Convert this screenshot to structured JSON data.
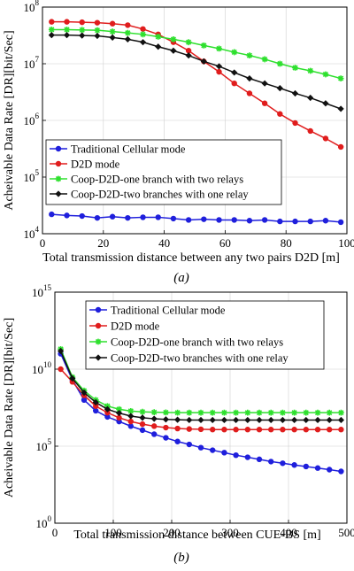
{
  "chart_data": [
    {
      "type": "line",
      "caption": "(a)",
      "xlabel": "Total transmission distance between any two pairs D2D [m]",
      "ylabel": "Acheivable Data Rate [DR][bit/Sec]",
      "xlim": [
        0,
        100
      ],
      "ylog10": true,
      "ylim_exp": [
        4,
        8
      ],
      "xticks": [
        "0",
        "20",
        "40",
        "60",
        "80",
        "100"
      ],
      "yticks": [
        {
          "base": "10",
          "exp": "4"
        },
        {
          "base": "10",
          "exp": "5"
        },
        {
          "base": "10",
          "exp": "6"
        },
        {
          "base": "10",
          "exp": "7"
        },
        {
          "base": "10",
          "exp": "8"
        }
      ],
      "grid": true,
      "legend_position": "bottom-left",
      "x": [
        3,
        8,
        13,
        18,
        23,
        28,
        33,
        38,
        43,
        48,
        53,
        58,
        63,
        68,
        73,
        78,
        83,
        88,
        93,
        98
      ],
      "series": [
        {
          "name": "Traditional Cellular mode",
          "color": "#1f1fdc",
          "marker": "circle",
          "values": [
            22000,
            21000,
            20500,
            19000,
            20000,
            19000,
            19500,
            19500,
            18500,
            17500,
            18000,
            17500,
            17500,
            17000,
            17500,
            16500,
            16500,
            16500,
            17000,
            16000
          ]
        },
        {
          "name": "D2D mode",
          "color": "#e01d1d",
          "marker": "circle",
          "values": [
            55000000,
            55000000,
            54000000,
            53000000,
            51000000,
            48000000,
            41000000,
            33000000,
            24000000,
            17000000,
            11000000,
            7200000,
            4500000,
            3000000,
            2000000,
            1300000,
            900000,
            650000,
            480000,
            340000
          ]
        },
        {
          "name": "Coop-D2D-one branch with two relays",
          "color": "#2ee02e",
          "marker": "star",
          "values": [
            40000000,
            40000000,
            39500000,
            39000000,
            37000000,
            35000000,
            33000000,
            30000000,
            27000000,
            24000000,
            21000000,
            18500000,
            16000000,
            14000000,
            12000000,
            10000000,
            8500000,
            7500000,
            6500000,
            5500000
          ]
        },
        {
          "name": "Coop-D2D-two branches with one relay",
          "color": "#111111",
          "marker": "diamond",
          "values": [
            32000000,
            32000000,
            31500000,
            31000000,
            29000000,
            27000000,
            24000000,
            20000000,
            17000000,
            14000000,
            11000000,
            9000000,
            7000000,
            5500000,
            4500000,
            3700000,
            3000000,
            2500000,
            2000000,
            1600000
          ]
        }
      ]
    },
    {
      "type": "line",
      "caption": "(b)",
      "xlabel": "Total transmission distance between CUE-BS [m]",
      "ylabel": "Acheivable Data Rate [DR][bit/Sec]",
      "xlim": [
        0,
        500
      ],
      "ylog10": true,
      "ylim_exp": [
        0,
        15
      ],
      "xticks": [
        "0",
        "100",
        "200",
        "300",
        "400",
        "500"
      ],
      "yticks": [
        {
          "base": "10",
          "exp": "0"
        },
        {
          "base": "10",
          "exp": "5"
        },
        {
          "base": "10",
          "exp": "10"
        },
        {
          "base": "10",
          "exp": "15"
        }
      ],
      "grid": true,
      "legend_position": "top-right",
      "x": [
        10,
        30,
        50,
        70,
        90,
        110,
        130,
        150,
        170,
        190,
        210,
        230,
        250,
        270,
        290,
        310,
        330,
        350,
        370,
        390,
        410,
        430,
        450,
        470,
        490
      ],
      "series": [
        {
          "name": "Traditional Cellular mode",
          "color": "#1f1fdc",
          "marker": "circle",
          "values": [
            100000000000.0,
            2000000000.0,
            100000000.0,
            20000000.0,
            8000000.0,
            4000000.0,
            2000000.0,
            1100000.0,
            600000.0,
            350000.0,
            200000.0,
            130000.0,
            80000.0,
            55000.0,
            38000.0,
            26000.0,
            19000.0,
            14000.0,
            10000.0,
            7800.0,
            6000.0,
            4800.0,
            3800.0,
            3000.0,
            2300.0
          ]
        },
        {
          "name": "D2D mode",
          "color": "#e01d1d",
          "marker": "circle",
          "values": [
            10000000000.0,
            1500000000.0,
            200000000.0,
            40000000.0,
            15000000.0,
            7000000.0,
            4000000.0,
            2700000.0,
            2000000.0,
            1600000.0,
            1400000.0,
            1300000.0,
            1250000.0,
            1200000.0,
            1200000.0,
            1200000.0,
            1200000.0,
            1200000.0,
            1200000.0,
            1200000.0,
            1200000.0,
            1200000.0,
            1200000.0,
            1200000.0,
            1200000.0
          ]
        },
        {
          "name": "Coop-D2D-one branch with two relays",
          "color": "#2ee02e",
          "marker": "star",
          "values": [
            200000000000.0,
            3000000000.0,
            400000000.0,
            100000000.0,
            40000000.0,
            25000000.0,
            19000000.0,
            17000000.0,
            16000000.0,
            15500000.0,
            15000000.0,
            15000000.0,
            15000000.0,
            15000000.0,
            15000000.0,
            15000000.0,
            15000000.0,
            15000000.0,
            15000000.0,
            15000000.0,
            15000000.0,
            15000000.0,
            15000000.0,
            15000000.0,
            15000000.0
          ]
        },
        {
          "name": "Coop-D2D-two branches with one relay",
          "color": "#111111",
          "marker": "diamond",
          "values": [
            150000000000.0,
            2500000000.0,
            300000000.0,
            70000000.0,
            25000000.0,
            14000000.0,
            9000000.0,
            7000000.0,
            6000000.0,
            5500000.0,
            5200000.0,
            5000000.0,
            5000000.0,
            5000000.0,
            5000000.0,
            5000000.0,
            5000000.0,
            5000000.0,
            5000000.0,
            5000000.0,
            5000000.0,
            5000000.0,
            5000000.0,
            5000000.0,
            5000000.0
          ]
        }
      ]
    }
  ]
}
